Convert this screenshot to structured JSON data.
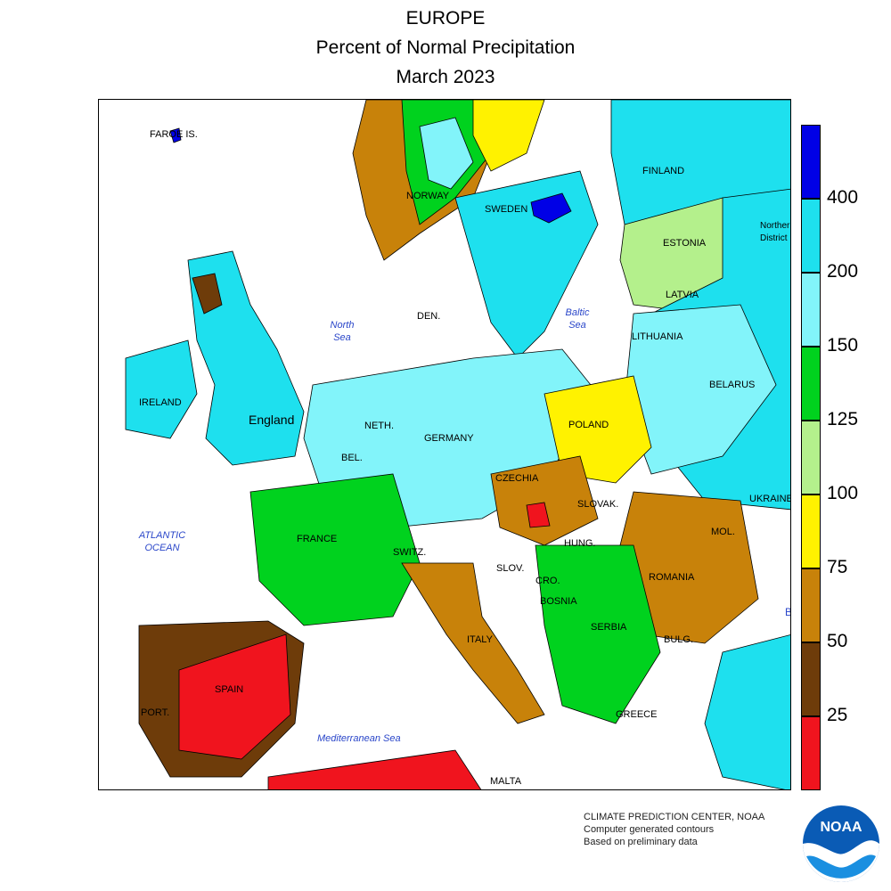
{
  "title": {
    "line1": "EUROPE",
    "line2": "Percent of Normal Precipitation",
    "line3": "March 2023"
  },
  "legend": {
    "colors": [
      "#0000e6",
      "#1ee0ee",
      "#82f4fa",
      "#00d21e",
      "#b4f08c",
      "#fff200",
      "#c8820a",
      "#6e3c0a",
      "#f0141e"
    ],
    "values": [
      "400",
      "200",
      "150",
      "125",
      "100",
      "75",
      "50",
      "25"
    ]
  },
  "map": {
    "labels": {
      "faroe": "FAROE IS.",
      "norway": "NORWAY",
      "sweden": "SWEDEN",
      "finland": "FINLAND",
      "estonia": "ESTONIA",
      "latvia": "LATVIA",
      "lithuania": "LITHUANIA",
      "belarus": "BELARUS",
      "northern_district": "Northern District",
      "den": "DEN.",
      "ireland": "IRELAND",
      "england": "England",
      "neth": "NETH.",
      "bel": "BEL.",
      "germany": "GERMANY",
      "poland": "POLAND",
      "czechia": "CZECHIA",
      "slovak": "SLOVAK.",
      "ukraine": "UKRAINE",
      "mol": "MOL.",
      "france": "FRANCE",
      "switz": "SWITZ.",
      "slov": "SLOV.",
      "hungary": "HUNG.",
      "cro": "CRO.",
      "bosnia": "BOSNIA",
      "romania": "ROMANIA",
      "serbia": "SERBIA",
      "bulg": "BULG.",
      "italy": "ITALY",
      "spain": "SPAIN",
      "port": "PORT.",
      "greece": "GREECE",
      "malta": "MALTA",
      "b_edge": "B"
    },
    "seas": {
      "north_sea": "North Sea",
      "baltic_sea": "Baltic Sea",
      "atlantic_ocean": "ATLANTIC OCEAN",
      "mediterranean_sea": "Mediterranean Sea"
    }
  },
  "credits": {
    "line1": "CLIMATE PREDICTION CENTER, NOAA",
    "line2": "Computer generated contours",
    "line3": "Based on preliminary data"
  },
  "logo": {
    "text": "NOAA",
    "color": "#0a5bb5"
  }
}
